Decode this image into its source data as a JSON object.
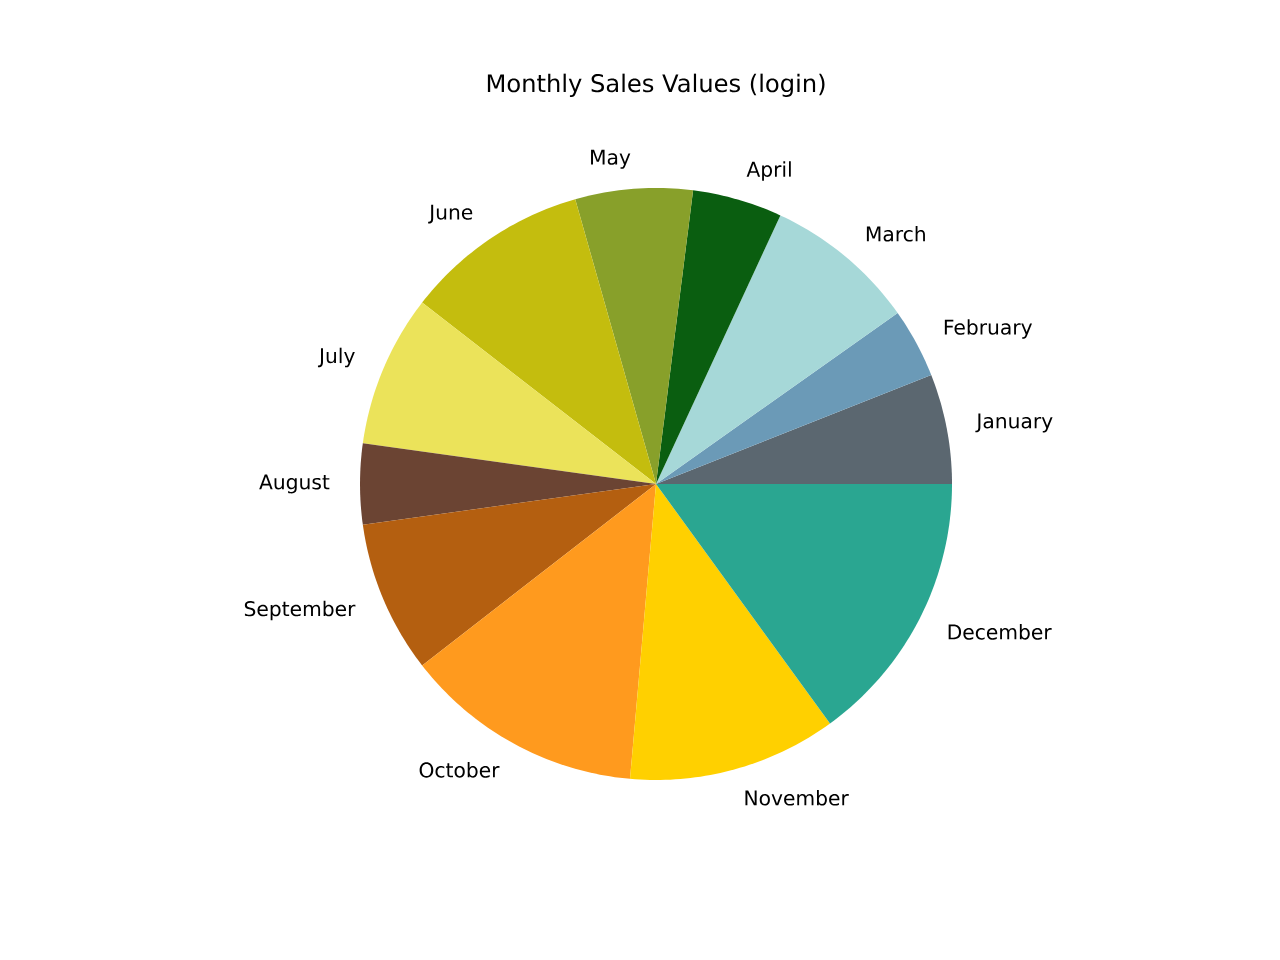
{
  "chart_data": {
    "type": "pie",
    "title": "Monthly Sales Values (login)",
    "categories": [
      "January",
      "February",
      "March",
      "April",
      "May",
      "June",
      "July",
      "August",
      "September",
      "October",
      "November",
      "December"
    ],
    "values": [
      6.0,
      3.8,
      8.3,
      4.9,
      6.4,
      10.1,
      8.3,
      4.4,
      8.3,
      13.1,
      11.4,
      15.0
    ],
    "colors": [
      "#5b6770",
      "#6b9ab7",
      "#a6d8d8",
      "#0a5e10",
      "#88a02a",
      "#c4bd0e",
      "#ebe35a",
      "#6b4433",
      "#b45f10",
      "#ff9a1e",
      "#ffd000",
      "#2aa691"
    ]
  }
}
